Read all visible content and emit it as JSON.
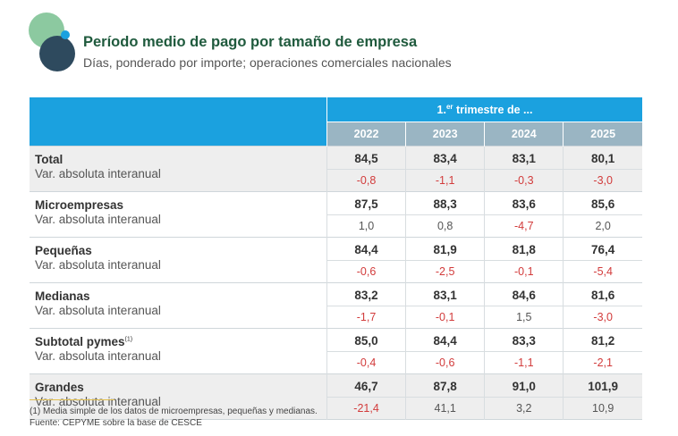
{
  "header": {
    "title": "Período medio de pago por tamaño de empresa",
    "subtitle": "Días, ponderado por importe; operaciones comerciales nacionales"
  },
  "colors": {
    "accent": "#1ba1df",
    "year_header": "#9ab5c3",
    "title": "#1f5a3d",
    "negative": "#d23b3b",
    "shade": "#eeeeee"
  },
  "table": {
    "period_label_pre": "1.",
    "period_label_sup": "er",
    "period_label_post": " trimestre de ...",
    "years": [
      "2022",
      "2023",
      "2024",
      "2025"
    ],
    "groups": [
      {
        "name": "Total",
        "sup": "",
        "sub": "Var. absoluta interanual",
        "values": [
          "84,5",
          "83,4",
          "83,1",
          "80,1"
        ],
        "changes": [
          "-0,8",
          "-1,1",
          "-0,3",
          "-3,0"
        ],
        "shaded": true
      },
      {
        "name": "Microempresas",
        "sup": "",
        "sub": "Var. absoluta interanual",
        "values": [
          "87,5",
          "88,3",
          "83,6",
          "85,6"
        ],
        "changes": [
          "1,0",
          "0,8",
          "-4,7",
          "2,0"
        ],
        "shaded": false
      },
      {
        "name": "Pequeñas",
        "sup": "",
        "sub": "Var. absoluta interanual",
        "values": [
          "84,4",
          "81,9",
          "81,8",
          "76,4"
        ],
        "changes": [
          "-0,6",
          "-2,5",
          "-0,1",
          "-5,4"
        ],
        "shaded": false
      },
      {
        "name": "Medianas",
        "sup": "",
        "sub": "Var. absoluta interanual",
        "values": [
          "83,2",
          "83,1",
          "84,6",
          "81,6"
        ],
        "changes": [
          "-1,7",
          "-0,1",
          "1,5",
          "-3,0"
        ],
        "shaded": false
      },
      {
        "name": "Subtotal pymes",
        "sup": "(1)",
        "sub": "Var. absoluta interanual",
        "values": [
          "85,0",
          "84,4",
          "83,3",
          "81,2"
        ],
        "changes": [
          "-0,4",
          "-0,6",
          "-1,1",
          "-2,1"
        ],
        "shaded": false
      },
      {
        "name": "Grandes",
        "sup": "",
        "sub": "Var. absoluta interanual",
        "values": [
          "46,7",
          "87,8",
          "91,0",
          "101,9"
        ],
        "changes": [
          "-21,4",
          "41,1",
          "3,2",
          "10,9"
        ],
        "shaded": true
      }
    ]
  },
  "footnotes": {
    "note1": "(1) Media simple de los datos de microempresas, pequeñas y medianas.",
    "source": "Fuente: CEPYME sobre la base de CESCE"
  }
}
